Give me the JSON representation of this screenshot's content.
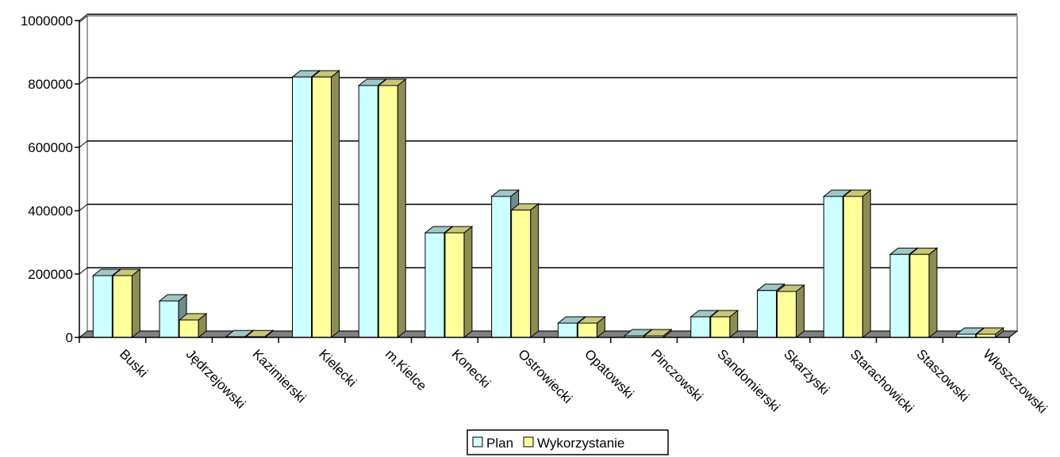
{
  "chart_data": {
    "type": "bar",
    "categories": [
      "Buski",
      "Jędrzejowski",
      "Kazimierski",
      "Kielecki",
      "m.Kielce",
      "Konecki",
      "Ostrowiecki",
      "Opatowski",
      "Pinczowski",
      "Sandomierski",
      "Skarżyski",
      "Starachowicki",
      "Staszowski",
      "Włoszczowski"
    ],
    "series": [
      {
        "name": "Plan",
        "color": "#ccffff",
        "values": [
          195000,
          115000,
          2000,
          822000,
          795000,
          330000,
          445000,
          45000,
          5000,
          65000,
          148000,
          445000,
          262000,
          10000
        ]
      },
      {
        "name": "Wykorzystanie",
        "color": "#ffff99",
        "values": [
          195000,
          55000,
          2000,
          822000,
          795000,
          330000,
          402000,
          45000,
          5000,
          65000,
          145000,
          445000,
          262000,
          10000
        ]
      }
    ],
    "yticks": [
      "0",
      "200000",
      "400000",
      "600000",
      "800000",
      "1000000"
    ],
    "ylim": [
      0,
      1000000
    ],
    "grid": true,
    "legend_position": "bottom"
  }
}
